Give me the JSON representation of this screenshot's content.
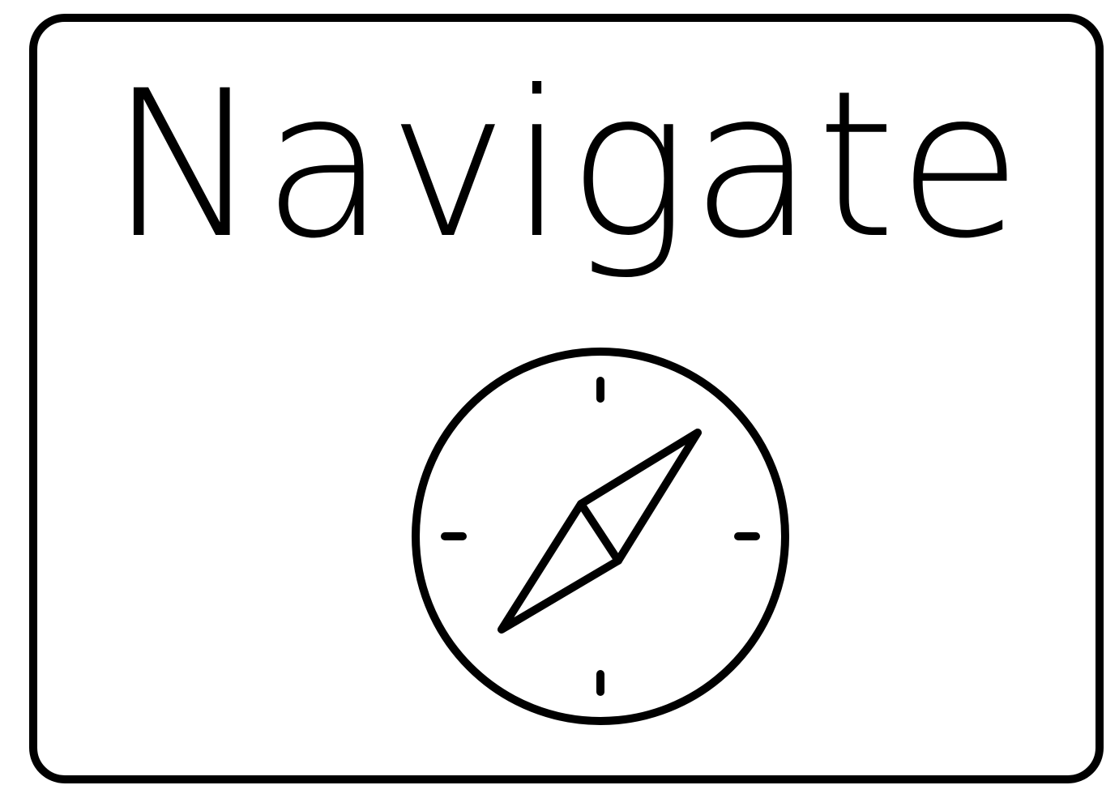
{
  "card": {
    "title": "Navigate",
    "icon": "compass-icon",
    "border_color": "#000000",
    "background_color": "#ffffff"
  }
}
